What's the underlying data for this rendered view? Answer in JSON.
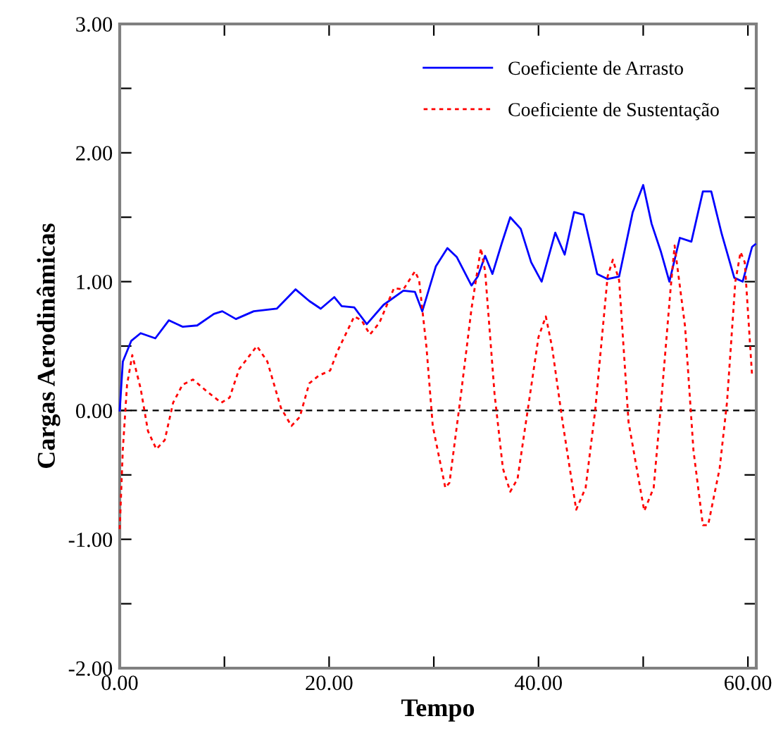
{
  "chart_data": {
    "type": "line",
    "xlabel": "Tempo",
    "ylabel": "Cargas Aerodinâmicas",
    "xlim": [
      0,
      60.8
    ],
    "ylim": [
      -2,
      3
    ],
    "xticks": [
      {
        "value": 0,
        "label": "0.00"
      },
      {
        "value": 10,
        "label": null
      },
      {
        "value": 20,
        "label": "20.00"
      },
      {
        "value": 30,
        "label": null
      },
      {
        "value": 40,
        "label": "40.00"
      },
      {
        "value": 50,
        "label": null
      },
      {
        "value": 60,
        "label": "60.00"
      }
    ],
    "yticks": [
      {
        "value": -2,
        "label": "-2.00"
      },
      {
        "value": -1.5,
        "label": null
      },
      {
        "value": -1,
        "label": "-1.00"
      },
      {
        "value": -0.5,
        "label": null
      },
      {
        "value": 0,
        "label": "0.00"
      },
      {
        "value": 0.5,
        "label": null
      },
      {
        "value": 1,
        "label": "1.00"
      },
      {
        "value": 1.5,
        "label": null
      },
      {
        "value": 2,
        "label": "2.00"
      },
      {
        "value": 2.5,
        "label": null
      },
      {
        "value": 3,
        "label": "3.00"
      }
    ],
    "legend": "top right",
    "grid": false,
    "ref_lines": [
      {
        "axis": "y",
        "value": 0,
        "color": "#000000",
        "line_style": "dashed"
      }
    ],
    "series": [
      {
        "name": "Coeficiente de Arrasto",
        "color": "#0000ff",
        "line_style": "solid",
        "x": [
          0,
          0.3,
          1.1,
          2,
          3.4,
          4.7,
          6,
          7.4,
          9,
          9.8,
          11.1,
          12.8,
          15,
          16.8,
          18.1,
          19.2,
          20.5,
          21.2,
          22.4,
          23.6,
          25.2,
          27.1,
          28.2,
          28.9,
          30.2,
          31.3,
          32.2,
          33.6,
          34.2,
          34.9,
          35.6,
          36.5,
          37.3,
          38.3,
          39.3,
          40.3,
          41.6,
          42.5,
          43.4,
          44.3,
          45.6,
          46.6,
          47.7,
          49,
          50,
          50.8,
          51.7,
          52.5,
          53.5,
          54.6,
          55.7,
          56.5,
          57.5,
          58.7,
          59.5,
          60.4,
          60.7
        ],
        "values": [
          0,
          0.38,
          0.54,
          0.6,
          0.56,
          0.7,
          0.65,
          0.66,
          0.75,
          0.77,
          0.71,
          0.77,
          0.79,
          0.94,
          0.85,
          0.79,
          0.88,
          0.81,
          0.8,
          0.67,
          0.82,
          0.93,
          0.92,
          0.77,
          1.12,
          1.26,
          1.19,
          0.97,
          1.04,
          1.2,
          1.06,
          1.3,
          1.5,
          1.41,
          1.15,
          1.0,
          1.38,
          1.21,
          1.54,
          1.52,
          1.06,
          1.02,
          1.04,
          1.54,
          1.75,
          1.45,
          1.23,
          1.0,
          1.34,
          1.31,
          1.7,
          1.7,
          1.37,
          1.03,
          1.0,
          1.27,
          1.29
        ]
      },
      {
        "name": "Coeficiente de Sustentação",
        "color": "#ff0000",
        "line_style": "dotted",
        "x": [
          0,
          0.3,
          0.7,
          1.2,
          2,
          2.7,
          3.5,
          4.3,
          5.1,
          6,
          7,
          8.3,
          9.7,
          10.5,
          11.4,
          13.1,
          14.1,
          15.4,
          16.4,
          17.2,
          18.1,
          19,
          20.1,
          20.8,
          22.4,
          23.1,
          23.9,
          24.8,
          26.2,
          27.1,
          28.2,
          28.6,
          29.3,
          29.9,
          31.1,
          31.5,
          32.6,
          33.6,
          34.5,
          34.9,
          35.8,
          36.6,
          37.3,
          38,
          39.2,
          40,
          40.7,
          41.3,
          42.3,
          43.6,
          44.5,
          45.4,
          46.6,
          47.1,
          47.7,
          48.6,
          50.1,
          51,
          51.7,
          52.6,
          53,
          54,
          54.8,
          55.7,
          56.2,
          57.3,
          58,
          58.8,
          59.3,
          59.7,
          60.4
        ],
        "values": [
          -0.92,
          -0.3,
          0.2,
          0.43,
          0.17,
          -0.16,
          -0.3,
          -0.23,
          0.06,
          0.2,
          0.24,
          0.15,
          0.06,
          0.1,
          0.32,
          0.5,
          0.38,
          0.02,
          -0.12,
          -0.05,
          0.21,
          0.27,
          0.31,
          0.46,
          0.73,
          0.7,
          0.59,
          0.68,
          0.95,
          0.94,
          1.08,
          1.01,
          0.49,
          -0.12,
          -0.6,
          -0.56,
          0.13,
          0.79,
          1.26,
          1.08,
          0.13,
          -0.45,
          -0.63,
          -0.53,
          0.13,
          0.57,
          0.73,
          0.49,
          -0.09,
          -0.77,
          -0.6,
          -0.01,
          1.04,
          1.17,
          1.01,
          -0.09,
          -0.78,
          -0.6,
          0.05,
          0.93,
          1.28,
          0.65,
          -0.31,
          -0.89,
          -0.89,
          -0.45,
          0.06,
          1.0,
          1.23,
          1.15,
          0.27
        ]
      }
    ]
  }
}
